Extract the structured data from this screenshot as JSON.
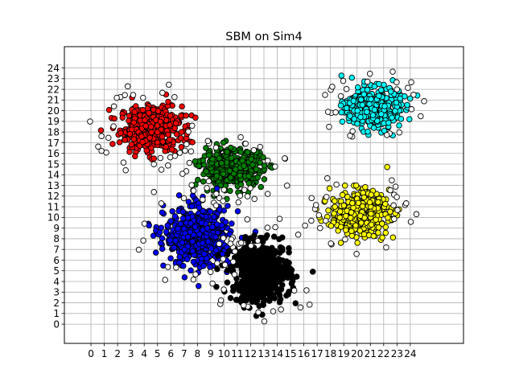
{
  "chart_data": {
    "type": "scatter",
    "title": "SBM on Sim4",
    "xlabel": "",
    "ylabel": "",
    "xlim": [
      -2,
      28
    ],
    "ylim": [
      -1.8,
      26
    ],
    "x_ticks": [
      0,
      1,
      2,
      3,
      4,
      5,
      6,
      7,
      8,
      9,
      10,
      11,
      12,
      13,
      14,
      15,
      16,
      17,
      18,
      19,
      20,
      21,
      22,
      23,
      24
    ],
    "y_ticks": [
      0,
      1,
      2,
      3,
      4,
      5,
      6,
      7,
      8,
      9,
      10,
      11,
      12,
      13,
      14,
      15,
      16,
      17,
      18,
      19,
      20,
      21,
      22,
      23,
      24
    ],
    "grid": true,
    "legend": "none",
    "marker": "circle",
    "marker_edge_color": "#000000",
    "clusters": [
      {
        "color": "#ff0000",
        "center": [
          4.5,
          18.3
        ],
        "spread": [
          1.6,
          1.5
        ],
        "count": 420
      },
      {
        "color": "#008000",
        "center": [
          10.6,
          14.6
        ],
        "spread": [
          1.6,
          1.2
        ],
        "count": 420
      },
      {
        "color": "#0000ff",
        "center": [
          8.0,
          8.2
        ],
        "spread": [
          1.7,
          1.9
        ],
        "count": 520
      },
      {
        "color": "#000000",
        "center": [
          12.8,
          4.8
        ],
        "spread": [
          1.5,
          1.9
        ],
        "count": 560
      },
      {
        "color": "#00ffff",
        "center": [
          21.2,
          20.3
        ],
        "spread": [
          1.4,
          1.3
        ],
        "count": 420
      },
      {
        "color": "#ffff00",
        "center": [
          20.2,
          10.4
        ],
        "spread": [
          1.5,
          1.4
        ],
        "count": 420
      },
      {
        "color": "#ffffff",
        "center": [
          11.0,
          11.0
        ],
        "spread": [
          6.5,
          6.5
        ],
        "count": 170
      }
    ]
  }
}
